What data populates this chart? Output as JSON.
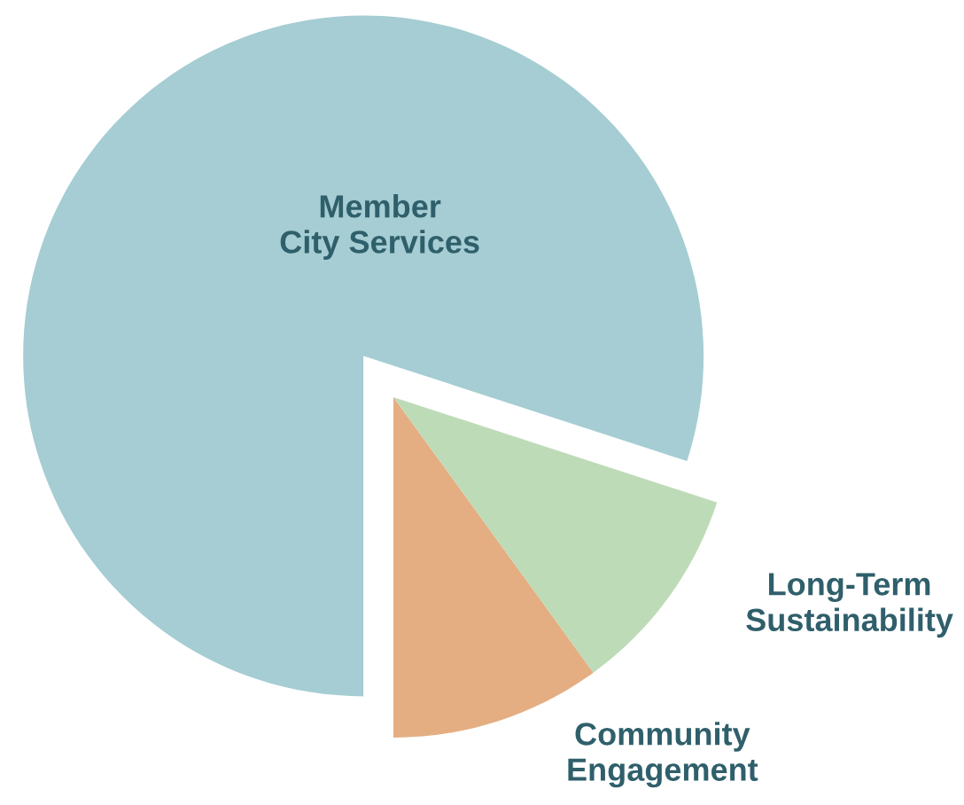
{
  "chart_data": {
    "type": "pie",
    "categories": [
      "Member\nCity Services",
      "Community\nEngagement",
      "Long-Term\nSustainability"
    ],
    "values": [
      80,
      10,
      10
    ],
    "colors": [
      "#a5cdd3",
      "#e4ae82",
      "#bedbb8"
    ]
  }
}
